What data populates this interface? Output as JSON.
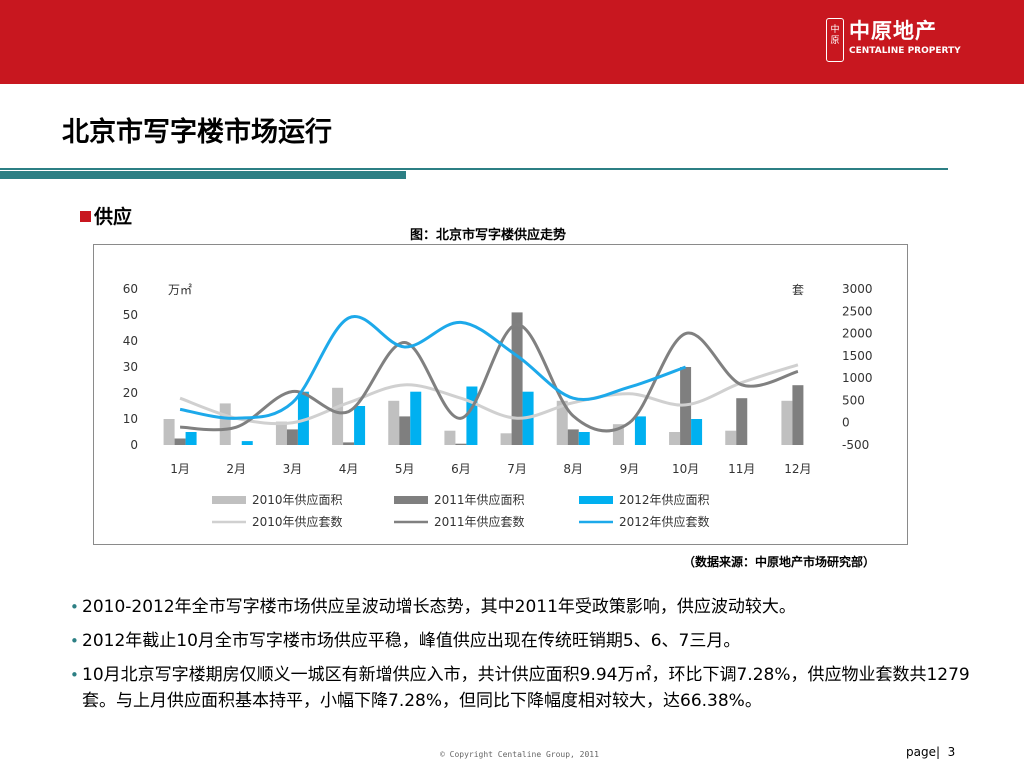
{
  "header": {
    "brand_color": "#c8171f",
    "logo": {
      "seal_text": "中原",
      "cn": "中原地产",
      "en": "CENTALINE PROPERTY"
    }
  },
  "title": "北京市写字楼市场运行",
  "section": "供应",
  "chart_caption": "图：北京市写字楼供应走势",
  "chart_data": {
    "type": "bar",
    "categories": [
      "1月",
      "2月",
      "3月",
      "4月",
      "5月",
      "6月",
      "7月",
      "8月",
      "9月",
      "10月",
      "11月",
      "12月"
    ],
    "bar_axis": {
      "unit": "万㎡",
      "ylim": [
        0,
        60
      ],
      "ticks": [
        0,
        10,
        20,
        30,
        40,
        50,
        60
      ]
    },
    "line_axis": {
      "unit": "套",
      "ylim": [
        -500,
        3000
      ],
      "ticks": [
        -500,
        0,
        500,
        1000,
        1500,
        2000,
        2500,
        3000
      ]
    },
    "bars": [
      {
        "name": "2010年供应面积",
        "color": "#c0c0c0",
        "values": [
          10,
          16,
          9,
          22,
          17,
          5.5,
          4.5,
          17,
          8,
          5,
          5.5,
          17
        ]
      },
      {
        "name": "2011年供应面积",
        "color": "#7f7f7f",
        "values": [
          2.5,
          0,
          6,
          1,
          11,
          0.5,
          51,
          6,
          0,
          30,
          18,
          23
        ]
      },
      {
        "name": "2012年供应面积",
        "color": "#00b0f0",
        "values": [
          5,
          1.5,
          20.5,
          15,
          20.5,
          22.5,
          20.5,
          5,
          11,
          10,
          null,
          null
        ]
      }
    ],
    "lines": [
      {
        "name": "2010年供应套数",
        "color": "#d0d0d0",
        "values": [
          550,
          100,
          0,
          450,
          850,
          550,
          100,
          450,
          650,
          400,
          900,
          1300
        ]
      },
      {
        "name": "2011年供应套数",
        "color": "#808080",
        "values": [
          -100,
          -100,
          700,
          250,
          1800,
          100,
          2200,
          150,
          0,
          2000,
          850,
          1150
        ]
      },
      {
        "name": "2012年供应套数",
        "color": "#1da9ea",
        "values": [
          300,
          100,
          450,
          2350,
          1700,
          2250,
          1500,
          550,
          800,
          1250,
          null,
          null
        ]
      }
    ],
    "grid": false,
    "legend_position": "bottom"
  },
  "source": "（数据来源：中原地产市场研究部）",
  "bullets": [
    "2010-2012年全市写字楼市场供应呈波动增长态势，其中2011年受政策影响，供应波动较大。",
    "2012年截止10月全市写字楼市场供应平稳，峰值供应出现在传统旺销期5、6、7三月。",
    "10月北京写字楼期房仅顺义一城区有新增供应入市，共计供应面积9.94万㎡，环比下调7.28%，供应物业套数共1279套。与上月供应面积基本持平，小幅下降7.28%，但同比下降幅度相对较大，达66.38%。"
  ],
  "footer": {
    "copyright": "© Copyright  Centaline Group, 2011",
    "page_label": "page|",
    "page_number": "3"
  }
}
